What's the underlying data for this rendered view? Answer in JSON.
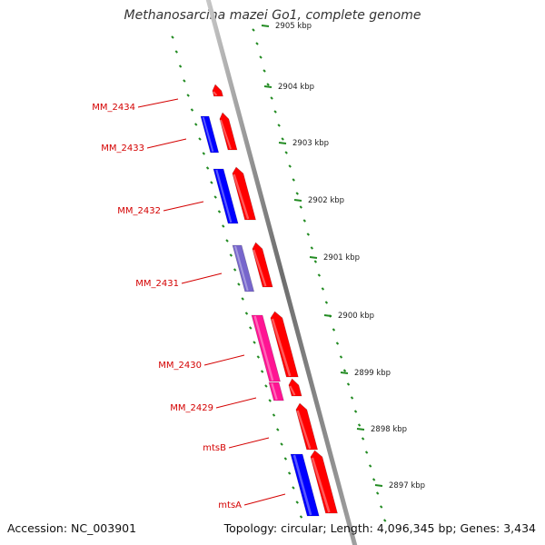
{
  "title": "Methanosarcina mazei Go1, complete genome",
  "footer": {
    "accession": "Accession: NC_003901",
    "topology": "Topology: circular; Length: 4,096,345 bp; Genes: 3,434"
  },
  "colors": {
    "forward": "#ff0000",
    "reverse_a": "#0000ff",
    "reverse_b": "#7766cc",
    "reverse_c": "#ff1493",
    "label": "#d40000",
    "tick": "#228b22",
    "backbone": "#888888"
  },
  "ticks": [
    {
      "label": "2905 kbp"
    },
    {
      "label": "2904 kbp"
    },
    {
      "label": "2903 kbp"
    },
    {
      "label": "2902 kbp"
    },
    {
      "label": "2901 kbp"
    },
    {
      "label": "2900 kbp"
    },
    {
      "label": "2899 kbp"
    },
    {
      "label": "2898 kbp"
    },
    {
      "label": "2897 kbp"
    }
  ],
  "genes": [
    {
      "label": "MM_2434"
    },
    {
      "label": "MM_2433"
    },
    {
      "label": "MM_2432"
    },
    {
      "label": "MM_2431"
    },
    {
      "label": "MM_2430"
    },
    {
      "label": "MM_2429"
    },
    {
      "label": "mtsB"
    },
    {
      "label": "mtsA"
    }
  ]
}
